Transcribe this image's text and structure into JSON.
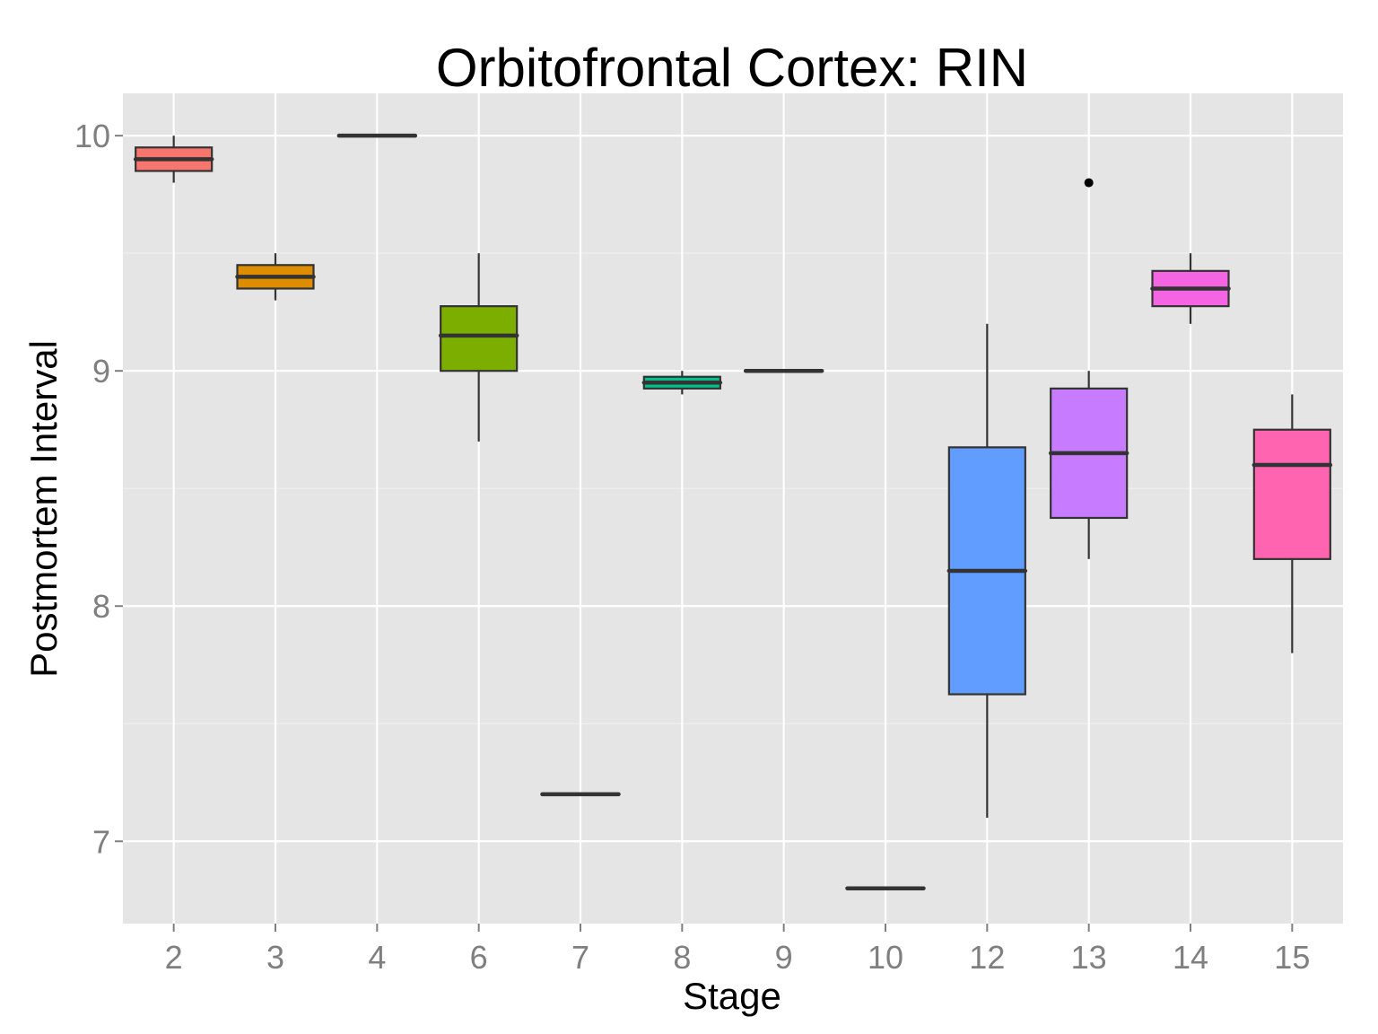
{
  "chart_data": {
    "type": "boxplot",
    "title": "Orbitofrontal Cortex: RIN",
    "xlabel": "Stage",
    "ylabel": "Postmortem Interval",
    "ylim": [
      6.65,
      10.18
    ],
    "yticks": [
      "7",
      "8",
      "9",
      "10"
    ],
    "grid": true,
    "legend": "none",
    "categories": [
      "2",
      "3",
      "4",
      "6",
      "7",
      "8",
      "9",
      "10",
      "12",
      "13",
      "14",
      "15"
    ],
    "boxes": [
      {
        "stage": "2",
        "min": 9.8,
        "q1": 9.85,
        "median": 9.9,
        "q3": 9.95,
        "max": 10.0,
        "outliers": [],
        "color": "#F8766D"
      },
      {
        "stage": "3",
        "min": 9.3,
        "q1": 9.35,
        "median": 9.4,
        "q3": 9.45,
        "max": 9.5,
        "outliers": [],
        "color": "#DE8C00"
      },
      {
        "stage": "4",
        "min": 10.0,
        "q1": 10.0,
        "median": 10.0,
        "q3": 10.0,
        "max": 10.0,
        "outliers": [],
        "color": "#B79F00"
      },
      {
        "stage": "6",
        "min": 8.7,
        "q1": 9.0,
        "median": 9.15,
        "q3": 9.275,
        "max": 9.5,
        "outliers": [],
        "color": "#7CAE00"
      },
      {
        "stage": "7",
        "min": 7.2,
        "q1": 7.2,
        "median": 7.2,
        "q3": 7.2,
        "max": 7.2,
        "outliers": [],
        "color": "#00BA38"
      },
      {
        "stage": "8",
        "min": 8.9,
        "q1": 8.925,
        "median": 8.95,
        "q3": 8.975,
        "max": 9.0,
        "outliers": [],
        "color": "#00C08B"
      },
      {
        "stage": "9",
        "min": 9.0,
        "q1": 9.0,
        "median": 9.0,
        "q3": 9.0,
        "max": 9.0,
        "outliers": [],
        "color": "#00BFC4"
      },
      {
        "stage": "10",
        "min": 6.8,
        "q1": 6.8,
        "median": 6.8,
        "q3": 6.8,
        "max": 6.8,
        "outliers": [],
        "color": "#00B4F0"
      },
      {
        "stage": "12",
        "min": 7.1,
        "q1": 7.625,
        "median": 8.15,
        "q3": 8.675,
        "max": 9.2,
        "outliers": [],
        "color": "#619CFF"
      },
      {
        "stage": "13",
        "min": 8.2,
        "q1": 8.375,
        "median": 8.65,
        "q3": 8.925,
        "max": 9.0,
        "outliers": [
          9.8
        ],
        "color": "#C77CFF"
      },
      {
        "stage": "14",
        "min": 9.2,
        "q1": 9.275,
        "median": 9.35,
        "q3": 9.425,
        "max": 9.5,
        "outliers": [],
        "color": "#F564E3"
      },
      {
        "stage": "15",
        "min": 7.8,
        "q1": 8.2,
        "median": 8.6,
        "q3": 8.75,
        "max": 8.9,
        "outliers": [],
        "color": "#FF64B0"
      }
    ],
    "colors": {
      "panel_background": "#E5E5E5",
      "grid_major": "#FFFFFF",
      "grid_minor": "#F2F2F2",
      "box_outline": "#333333",
      "tick_label": "#7F7F7F"
    }
  }
}
